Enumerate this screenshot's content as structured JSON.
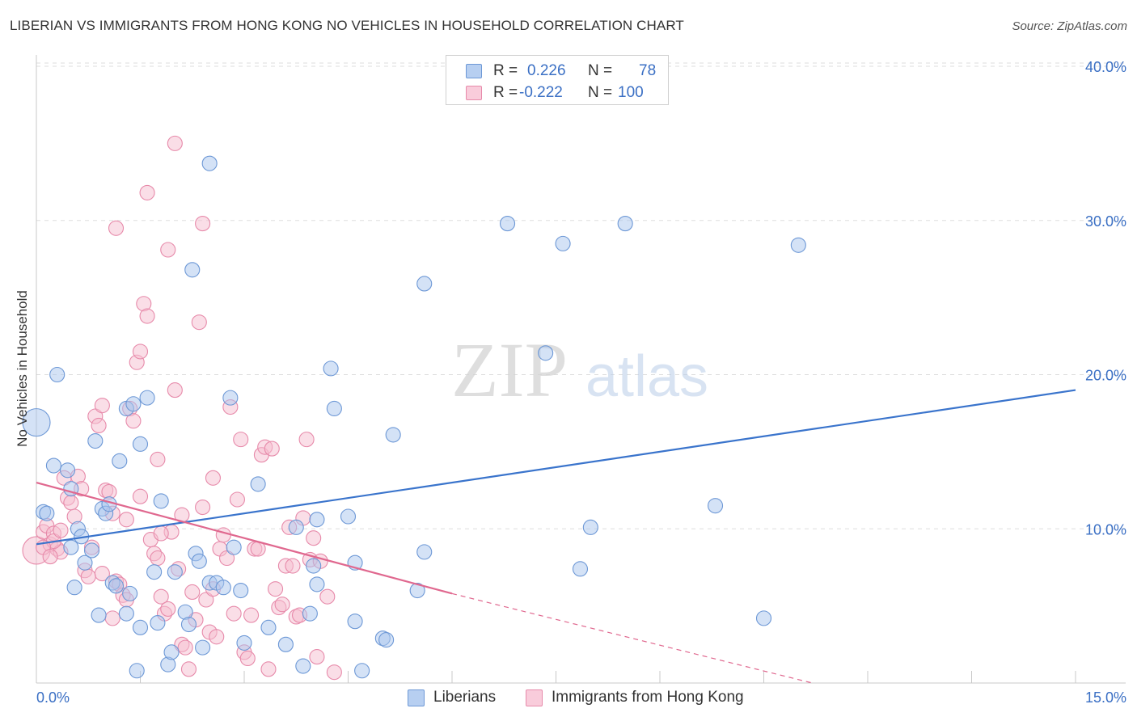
{
  "title": "LIBERIAN VS IMMIGRANTS FROM HONG KONG NO VEHICLES IN HOUSEHOLD CORRELATION CHART",
  "source": "Source: ZipAtlas.com",
  "watermark": {
    "zip": "ZIP",
    "atlas": "atlas"
  },
  "legend": {
    "series1": {
      "r_label": "R =",
      "r_value": "0.226",
      "n_label": "N =",
      "n_value": "78"
    },
    "series2": {
      "r_label": "R =",
      "r_value": "-0.222",
      "n_label": "N =",
      "n_value": "100"
    }
  },
  "colors": {
    "blue_fill": "#a9c6ee",
    "blue_stroke": "#6d98d6",
    "blue_line": "#3a74cc",
    "pink_fill": "#f5bdd0",
    "pink_stroke": "#e78aaa",
    "pink_line": "#e0688f",
    "axis_text": "#3a6fc4",
    "grid": "#dddddd"
  },
  "chart_data": {
    "type": "scatter",
    "title": "LIBERIAN VS IMMIGRANTS FROM HONG KONG NO VEHICLES IN HOUSEHOLD CORRELATION CHART",
    "xlabel": "",
    "ylabel": "No Vehicles in Household",
    "xlim": [
      0,
      15
    ],
    "ylim": [
      0,
      40
    ],
    "x_tick_labels": [
      "0.0%",
      "15.0%"
    ],
    "y_ticks": [
      10,
      20,
      30,
      40
    ],
    "y_tick_labels": [
      "10.0%",
      "20.0%",
      "30.0%",
      "40.0%"
    ],
    "series": [
      {
        "name": "Liberians",
        "r": 0.226,
        "n": 78,
        "trend": {
          "x": [
            0,
            15
          ],
          "y": [
            9.0,
            19.0
          ],
          "style": "solid"
        },
        "points": [
          [
            0.0,
            16.9,
            "big"
          ],
          [
            0.1,
            11.1
          ],
          [
            0.3,
            20.0
          ],
          [
            0.25,
            14.1
          ],
          [
            0.45,
            13.8
          ],
          [
            0.5,
            12.6
          ],
          [
            0.6,
            10.0
          ],
          [
            0.65,
            9.5
          ],
          [
            0.5,
            8.8
          ],
          [
            0.7,
            7.8
          ],
          [
            0.55,
            6.2
          ],
          [
            0.8,
            8.6
          ],
          [
            0.85,
            15.7
          ],
          [
            0.95,
            11.3
          ],
          [
            1.0,
            11.0
          ],
          [
            1.05,
            11.6
          ],
          [
            0.9,
            4.4
          ],
          [
            1.1,
            6.5
          ],
          [
            1.15,
            6.3
          ],
          [
            1.3,
            4.5
          ],
          [
            1.35,
            5.8
          ],
          [
            1.2,
            14.4
          ],
          [
            1.5,
            15.5
          ],
          [
            1.3,
            17.8
          ],
          [
            1.4,
            18.1
          ],
          [
            1.6,
            18.5
          ],
          [
            1.7,
            7.2
          ],
          [
            1.8,
            11.8
          ],
          [
            1.5,
            3.6
          ],
          [
            1.75,
            3.9
          ],
          [
            1.45,
            0.8
          ],
          [
            1.9,
            1.2
          ],
          [
            1.95,
            2.0
          ],
          [
            2.0,
            7.2
          ],
          [
            2.15,
            4.6
          ],
          [
            2.2,
            3.8
          ],
          [
            2.3,
            8.4
          ],
          [
            2.35,
            7.9
          ],
          [
            2.4,
            2.3
          ],
          [
            2.5,
            6.5
          ],
          [
            2.6,
            6.5
          ],
          [
            2.7,
            6.2
          ],
          [
            2.85,
            8.8
          ],
          [
            2.95,
            6.0
          ],
          [
            3.0,
            2.6
          ],
          [
            2.8,
            18.5
          ],
          [
            3.2,
            12.9
          ],
          [
            3.35,
            3.6
          ],
          [
            3.6,
            2.5
          ],
          [
            3.75,
            10.1
          ],
          [
            3.85,
            1.1
          ],
          [
            3.95,
            4.5
          ],
          [
            4.0,
            7.6
          ],
          [
            4.05,
            6.4
          ],
          [
            4.05,
            10.6
          ],
          [
            4.25,
            20.4
          ],
          [
            4.3,
            17.8
          ],
          [
            4.5,
            10.8
          ],
          [
            4.6,
            7.8
          ],
          [
            4.6,
            4.0
          ],
          [
            4.7,
            0.8
          ],
          [
            5.0,
            2.9
          ],
          [
            5.05,
            2.8
          ],
          [
            5.15,
            16.1
          ],
          [
            5.5,
            6.0
          ],
          [
            5.6,
            8.5
          ],
          [
            5.6,
            25.9
          ],
          [
            6.8,
            29.8
          ],
          [
            7.35,
            21.4
          ],
          [
            7.6,
            28.5
          ],
          [
            7.85,
            7.4
          ],
          [
            8.0,
            10.1
          ],
          [
            8.5,
            29.8
          ],
          [
            9.8,
            11.5
          ],
          [
            10.5,
            4.2
          ],
          [
            11.0,
            28.4
          ],
          [
            2.5,
            33.7
          ],
          [
            2.25,
            26.8
          ],
          [
            0.15,
            11.0
          ]
        ]
      },
      {
        "name": "Immigrants from Hong Kong",
        "r": -0.222,
        "n": 100,
        "trend": {
          "x": [
            0,
            6.0
          ],
          "y": [
            13.0,
            5.8
          ],
          "dashed_to": [
            11.2,
            0.0
          ]
        },
        "points": [
          [
            0.0,
            8.6,
            "big"
          ],
          [
            0.1,
            9.8
          ],
          [
            0.15,
            10.2
          ],
          [
            0.2,
            9.0
          ],
          [
            0.25,
            9.7
          ],
          [
            0.3,
            8.7
          ],
          [
            0.35,
            8.5
          ],
          [
            0.4,
            13.3
          ],
          [
            0.45,
            12.0
          ],
          [
            0.5,
            11.7
          ],
          [
            0.55,
            10.8
          ],
          [
            0.6,
            13.4
          ],
          [
            0.7,
            7.3
          ],
          [
            0.75,
            6.9
          ],
          [
            0.8,
            8.8
          ],
          [
            0.85,
            17.3
          ],
          [
            0.9,
            16.7
          ],
          [
            0.95,
            18.0
          ],
          [
            1.0,
            12.5
          ],
          [
            1.05,
            12.4
          ],
          [
            1.1,
            11.0
          ],
          [
            1.15,
            6.6
          ],
          [
            1.2,
            6.4
          ],
          [
            1.25,
            5.7
          ],
          [
            1.3,
            5.4
          ],
          [
            1.35,
            17.8
          ],
          [
            1.4,
            17.0
          ],
          [
            1.45,
            20.8
          ],
          [
            1.5,
            21.5
          ],
          [
            1.55,
            24.6
          ],
          [
            1.6,
            23.8
          ],
          [
            1.65,
            9.3
          ],
          [
            1.7,
            8.4
          ],
          [
            1.75,
            8.1
          ],
          [
            1.8,
            5.6
          ],
          [
            1.85,
            4.5
          ],
          [
            1.9,
            4.8
          ],
          [
            1.95,
            9.8
          ],
          [
            2.0,
            19.0
          ],
          [
            2.05,
            7.4
          ],
          [
            2.1,
            2.5
          ],
          [
            2.15,
            2.3
          ],
          [
            2.2,
            0.9
          ],
          [
            2.25,
            5.9
          ],
          [
            2.3,
            4.1
          ],
          [
            2.35,
            23.4
          ],
          [
            2.4,
            29.8
          ],
          [
            2.45,
            5.4
          ],
          [
            2.5,
            3.3
          ],
          [
            2.55,
            6.1
          ],
          [
            2.6,
            3.0
          ],
          [
            2.65,
            8.7
          ],
          [
            2.7,
            9.6
          ],
          [
            2.75,
            8.1
          ],
          [
            2.8,
            17.9
          ],
          [
            2.85,
            4.5
          ],
          [
            2.9,
            11.9
          ],
          [
            2.95,
            15.8
          ],
          [
            3.0,
            2.0
          ],
          [
            3.05,
            1.6
          ],
          [
            3.1,
            4.4
          ],
          [
            3.15,
            8.7
          ],
          [
            3.2,
            8.7
          ],
          [
            3.25,
            14.8
          ],
          [
            3.3,
            15.3
          ],
          [
            3.35,
            0.9
          ],
          [
            3.4,
            15.2
          ],
          [
            3.45,
            6.1
          ],
          [
            3.5,
            4.9
          ],
          [
            3.55,
            5.1
          ],
          [
            3.6,
            7.6
          ],
          [
            3.65,
            10.1
          ],
          [
            3.7,
            7.6
          ],
          [
            3.75,
            4.3
          ],
          [
            3.8,
            4.4
          ],
          [
            3.85,
            10.7
          ],
          [
            3.9,
            15.8
          ],
          [
            3.95,
            8.0
          ],
          [
            4.0,
            9.4
          ],
          [
            4.05,
            1.7
          ],
          [
            4.1,
            7.9
          ],
          [
            4.2,
            5.6
          ],
          [
            4.3,
            0.7
          ],
          [
            1.6,
            31.8
          ],
          [
            1.9,
            28.1
          ],
          [
            2.0,
            35.0
          ],
          [
            1.15,
            29.5
          ],
          [
            0.25,
            9.2
          ],
          [
            0.1,
            8.8
          ],
          [
            0.35,
            9.9
          ],
          [
            1.5,
            12.1
          ],
          [
            1.8,
            9.7
          ],
          [
            2.4,
            11.4
          ],
          [
            2.1,
            10.9
          ],
          [
            0.95,
            7.1
          ],
          [
            1.3,
            10.6
          ],
          [
            0.65,
            12.6
          ],
          [
            1.75,
            14.5
          ],
          [
            2.55,
            13.3
          ],
          [
            0.2,
            8.2
          ],
          [
            1.1,
            4.2
          ]
        ]
      }
    ]
  },
  "bottom_legend": {
    "item1": "Liberians",
    "item2": "Immigrants from Hong Kong"
  }
}
